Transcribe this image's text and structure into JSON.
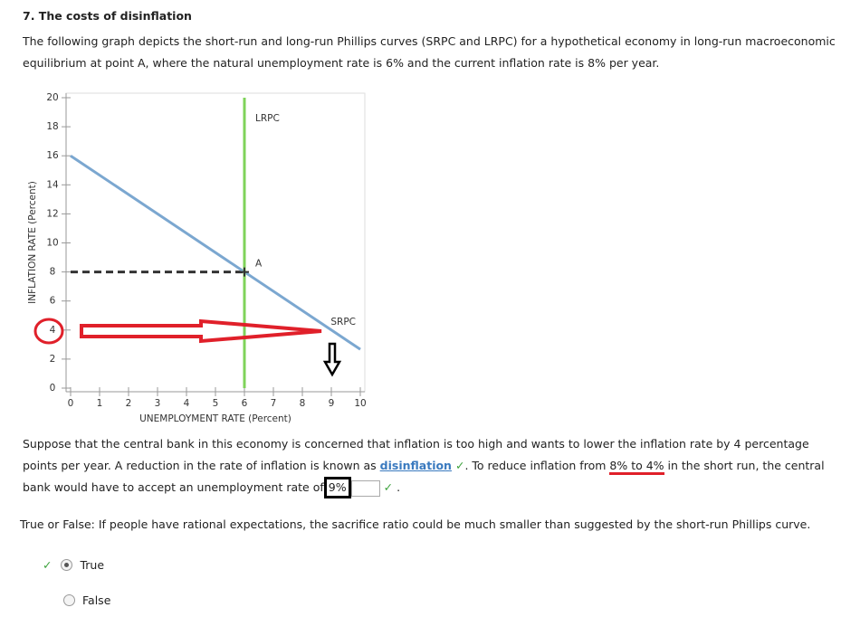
{
  "heading": "7. The costs of disinflation",
  "intro": "The following graph depicts the short-run and long-run Phillips curves (SRPC and LRPC) for a hypothetical economy in long-run macroeconomic equilibrium at point A, where the natural unemployment rate is 6% and the current inflation rate is 8% per year.",
  "chart_data": {
    "type": "line",
    "x_label": "UNEMPLOYMENT RATE (Percent)",
    "y_label": "INFLATION RATE (Percent)",
    "xlim": [
      0,
      10
    ],
    "ylim": [
      0,
      20
    ],
    "xticks": [
      0,
      1,
      2,
      3,
      4,
      5,
      6,
      7,
      8,
      9,
      10
    ],
    "yticks": [
      0,
      2,
      4,
      6,
      8,
      10,
      12,
      14,
      16,
      18,
      20
    ],
    "series": [
      {
        "name": "SRPC",
        "color": "#7ba7d0",
        "x": [
          0,
          10
        ],
        "values": [
          16,
          2.67
        ]
      },
      {
        "name": "LRPC",
        "color": "#7fd35a",
        "x": [
          6,
          6
        ],
        "values": [
          0,
          20
        ]
      }
    ],
    "guide": {
      "color": "#333333",
      "x": [
        0,
        6
      ],
      "values": [
        8,
        8
      ]
    },
    "point": {
      "label": "A",
      "x": 6,
      "y": 8
    }
  },
  "question1": {
    "text_1": "Suppose that the central bank in this economy is concerned that inflation is too high and wants to lower the inflation rate by 4 percentage points per year. A reduction in the rate of inflation is known as",
    "answer_1": "disinflation",
    "text_2": ". To reduce inflation from",
    "highlight": "8% to 4%",
    "text_3": "in the short run, the central bank would have to accept an unemployment rate of",
    "answer_2": "9%",
    "text_4": "."
  },
  "question2": {
    "prompt": "True or False: If people have rational expectations, the sacrifice ratio could be much smaller than suggested by the short-run Phillips curve.",
    "options": [
      "True",
      "False"
    ]
  }
}
